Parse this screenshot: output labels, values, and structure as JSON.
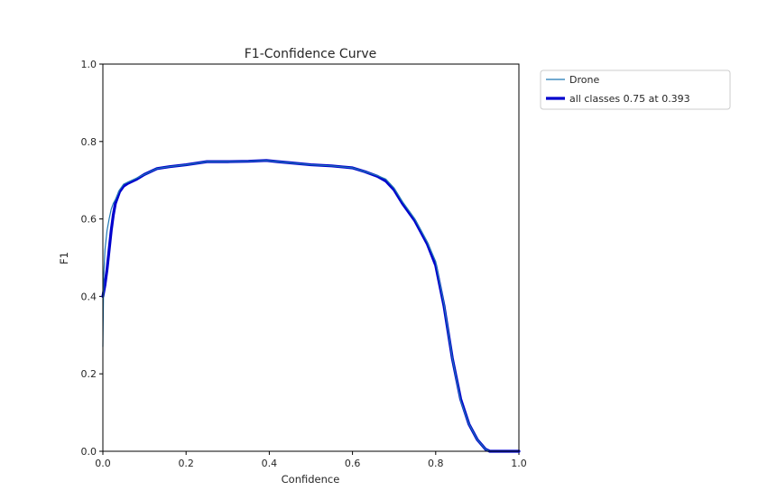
{
  "chart_data": {
    "type": "line",
    "title": "F1-Confidence Curve",
    "xlabel": "Confidence",
    "ylabel": "F1",
    "xlim": [
      0,
      1
    ],
    "ylim": [
      0,
      1
    ],
    "xticks": [
      "0.0",
      "0.2",
      "0.4",
      "0.6",
      "0.8",
      "1.0"
    ],
    "yticks": [
      "0.0",
      "0.2",
      "0.4",
      "0.6",
      "0.8",
      "1.0"
    ],
    "grid": false,
    "legend_position": "outside-top-right",
    "series": [
      {
        "name": "Drone",
        "color": "#1f77b4",
        "style": "thin",
        "x": [
          0.0,
          0.002,
          0.005,
          0.01,
          0.015,
          0.02,
          0.025,
          0.03,
          0.04,
          0.05,
          0.06,
          0.08,
          0.1,
          0.13,
          0.16,
          0.2,
          0.25,
          0.3,
          0.35,
          0.393,
          0.42,
          0.45,
          0.5,
          0.55,
          0.6,
          0.63,
          0.66,
          0.68,
          0.7,
          0.72,
          0.75,
          0.78,
          0.8,
          0.82,
          0.84,
          0.86,
          0.88,
          0.9,
          0.92,
          0.93,
          0.95,
          1.0
        ],
        "y": [
          0.27,
          0.45,
          0.52,
          0.57,
          0.6,
          0.625,
          0.64,
          0.65,
          0.675,
          0.69,
          0.695,
          0.705,
          0.715,
          0.73,
          0.735,
          0.74,
          0.748,
          0.748,
          0.749,
          0.751,
          0.748,
          0.745,
          0.74,
          0.737,
          0.732,
          0.722,
          0.712,
          0.703,
          0.68,
          0.645,
          0.6,
          0.54,
          0.49,
          0.38,
          0.24,
          0.13,
          0.07,
          0.03,
          0.005,
          0.0,
          0.0,
          0.0
        ]
      },
      {
        "name": "all classes 0.75 at 0.393",
        "color": "#0000cd",
        "style": "thick",
        "x": [
          0.0,
          0.005,
          0.01,
          0.015,
          0.02,
          0.025,
          0.03,
          0.04,
          0.05,
          0.06,
          0.08,
          0.1,
          0.13,
          0.16,
          0.2,
          0.25,
          0.3,
          0.35,
          0.393,
          0.42,
          0.45,
          0.5,
          0.55,
          0.6,
          0.63,
          0.66,
          0.68,
          0.7,
          0.72,
          0.75,
          0.78,
          0.8,
          0.82,
          0.84,
          0.86,
          0.88,
          0.9,
          0.92,
          0.93,
          0.95,
          1.0
        ],
        "y": [
          0.4,
          0.43,
          0.47,
          0.52,
          0.57,
          0.61,
          0.64,
          0.67,
          0.685,
          0.692,
          0.702,
          0.715,
          0.73,
          0.735,
          0.74,
          0.748,
          0.748,
          0.749,
          0.751,
          0.748,
          0.745,
          0.74,
          0.737,
          0.732,
          0.722,
          0.71,
          0.698,
          0.675,
          0.64,
          0.595,
          0.535,
          0.48,
          0.375,
          0.24,
          0.135,
          0.07,
          0.03,
          0.005,
          0.0,
          0.0,
          0.0
        ]
      }
    ]
  }
}
